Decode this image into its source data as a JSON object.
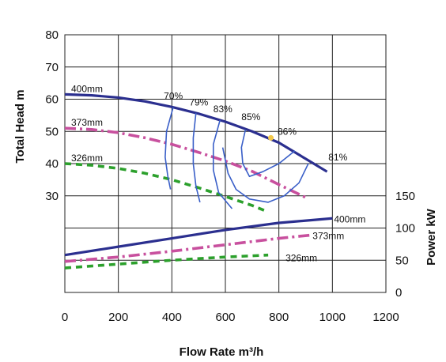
{
  "chart_data": {
    "type": "line",
    "xlabel": "Flow Rate m³/h",
    "ylabel_left": "Total Head m",
    "ylabel_right": "Power kW",
    "xlim": [
      0,
      1200
    ],
    "ylim_head": [
      0,
      80
    ],
    "ylim_power": [
      0,
      150
    ],
    "x_ticks": [
      "0",
      "200",
      "400",
      "600",
      "800",
      "1000",
      "1200"
    ],
    "y_ticks_left": [
      "30",
      "40",
      "50",
      "60",
      "70",
      "80"
    ],
    "y_ticks_right": [
      "0",
      "50",
      "100",
      "150"
    ],
    "grid": true,
    "head_series": [
      {
        "name": "400mm",
        "color": "#2b2f8f",
        "dash": "solid",
        "x": [
          0,
          100,
          200,
          300,
          400,
          500,
          600,
          700,
          800,
          900,
          980
        ],
        "y": [
          61.5,
          61.2,
          60.5,
          59.3,
          57.6,
          55.5,
          53,
          50,
          46.5,
          41.5,
          37.5
        ]
      },
      {
        "name": "373mm",
        "color": "#c8509e",
        "dash": "dashdot",
        "x": [
          0,
          100,
          200,
          300,
          400,
          500,
          600,
          700,
          800,
          900
        ],
        "y": [
          51,
          50.6,
          49.6,
          48,
          46,
          43.5,
          40.8,
          37.6,
          33.5,
          29.5
        ]
      },
      {
        "name": "326mm",
        "color": "#2ca02c",
        "dash": "dash",
        "x": [
          0,
          100,
          200,
          300,
          400,
          500,
          600,
          700,
          760
        ],
        "y": [
          40,
          39.5,
          38.5,
          37,
          35,
          32.5,
          29.8,
          27,
          25
        ]
      }
    ],
    "power_series": [
      {
        "name": "400mm",
        "color": "#2b2f8f",
        "dash": "solid",
        "x": [
          0,
          200,
          400,
          600,
          800,
          1000
        ],
        "y": [
          58,
          71,
          84,
          97,
          108,
          115
        ]
      },
      {
        "name": "373mm",
        "color": "#c8509e",
        "dash": "dashdot",
        "x": [
          0,
          200,
          400,
          600,
          800,
          920
        ],
        "y": [
          48,
          55,
          64,
          74,
          84,
          89
        ]
      },
      {
        "name": "326mm",
        "color": "#2ca02c",
        "dash": "dash",
        "x": [
          0,
          200,
          400,
          600,
          760
        ],
        "y": [
          38,
          44,
          50,
          55,
          58
        ]
      }
    ],
    "efficiency_labels": [
      "70%",
      "79%",
      "83%",
      "85%",
      "86%",
      "81%"
    ],
    "efficiency_color": "#3a5fc8",
    "efficiency_contours": [
      {
        "x": [
          405,
          380,
          375,
          385,
          395
        ],
        "y": [
          57.5,
          50,
          42,
          36,
          32
        ]
      },
      {
        "x": [
          490,
          480,
          480,
          490,
          505
        ],
        "y": [
          55.7,
          48,
          40,
          33,
          28
        ]
      },
      {
        "x": [
          580,
          555,
          555,
          575,
          625
        ],
        "y": [
          53.5,
          46,
          38,
          31,
          26
        ]
      },
      {
        "x": [
          675,
          660,
          665,
          690,
          740,
          800,
          860
        ],
        "y": [
          50.5,
          45,
          40,
          36,
          37.5,
          40,
          44
        ]
      },
      {
        "x": [
          590,
          610,
          640,
          690,
          760,
          820,
          875,
          910
        ],
        "y": [
          45,
          37,
          32,
          29,
          28,
          30,
          34,
          40
        ]
      }
    ],
    "bep_marker": {
      "x": 770,
      "y": 48,
      "color": "#f2c84b"
    }
  }
}
